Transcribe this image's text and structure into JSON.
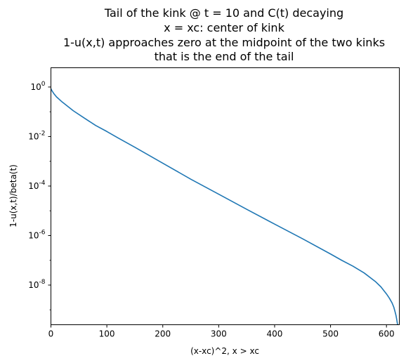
{
  "chart_data": {
    "type": "line",
    "title_lines": [
      "Tail of the kink @ t = 10 and C(t) decaying",
      "x = xc: center of kink",
      "1-u(x,t) approaches zero at the midpoint of the two kinks",
      "that is the end of the tail"
    ],
    "xlabel": "(x-xc)^2, x > xc",
    "ylabel": "1-u(x,t)/beta(t)",
    "xscale": "linear",
    "yscale": "log",
    "xlim": [
      0,
      623
    ],
    "ylim": [
      2.5e-10,
      6.0
    ],
    "xticks": [
      0,
      100,
      200,
      300,
      400,
      500,
      600
    ],
    "yticks": [
      {
        "value": 1,
        "base": "10",
        "exp": "0"
      },
      {
        "value": 0.01,
        "base": "10",
        "exp": "-2"
      },
      {
        "value": 0.0001,
        "base": "10",
        "exp": "-4"
      },
      {
        "value": 1e-06,
        "base": "10",
        "exp": "-6"
      },
      {
        "value": 1e-08,
        "base": "10",
        "exp": "-8"
      }
    ],
    "grid": false,
    "line_color": "#1f77b4",
    "series": [
      {
        "x": [
          0,
          2,
          5,
          10,
          20,
          40,
          60,
          80,
          100,
          120,
          150,
          200,
          250,
          300,
          350,
          400,
          450,
          500,
          520,
          540,
          560,
          580,
          590,
          600,
          605,
          610,
          613,
          615,
          617,
          618,
          619,
          619.5,
          620
        ],
        "y": [
          0.85,
          0.7,
          0.55,
          0.4,
          0.25,
          0.11,
          0.055,
          0.028,
          0.016,
          0.0088,
          0.0037,
          0.00084,
          0.00019,
          4.7e-05,
          1.15e-05,
          2.9e-06,
          7.4e-07,
          1.8e-07,
          1e-07,
          5.8e-08,
          3.1e-08,
          1.4e-08,
          8.5e-09,
          4.4e-09,
          3e-09,
          1.9e-09,
          1.3e-09,
          9e-10,
          6e-10,
          4.5e-10,
          3.3e-10,
          2.8e-10,
          2.5e-10
        ]
      }
    ]
  }
}
